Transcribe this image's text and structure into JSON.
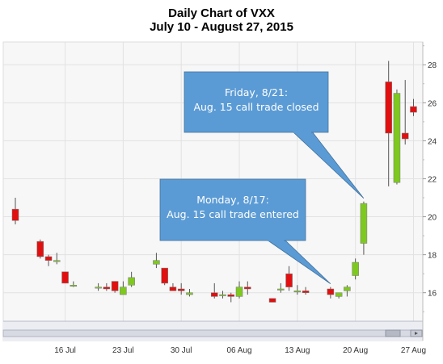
{
  "chart_data": {
    "type": "candlestick",
    "title": "Daily Chart of VXX",
    "subtitle": "July 10 - August 27, 2015",
    "ylim": [
      14.5,
      29.2
    ],
    "yticks": [
      16,
      18,
      20,
      22,
      24,
      26,
      28
    ],
    "xticks": [
      {
        "label": "16 Jul",
        "date": "2015-07-16"
      },
      {
        "label": "23 Jul",
        "date": "2015-07-23"
      },
      {
        "label": "30 Jul",
        "date": "2015-07-30"
      },
      {
        "label": "06 Aug",
        "date": "2015-08-06"
      },
      {
        "label": "13 Aug",
        "date": "2015-08-13"
      },
      {
        "label": "20 Aug",
        "date": "2015-08-20"
      },
      {
        "label": "27 Aug",
        "date": "2015-08-27"
      }
    ],
    "grid": true,
    "up_color": "#7ec820",
    "down_color": "#e01010",
    "candles": [
      {
        "date": "2015-07-10",
        "open": 20.4,
        "high": 21.0,
        "low": 19.6,
        "close": 19.8
      },
      {
        "date": "2015-07-13",
        "open": 18.7,
        "high": 18.8,
        "low": 17.8,
        "close": 17.9
      },
      {
        "date": "2015-07-14",
        "open": 17.9,
        "high": 18.0,
        "low": 17.4,
        "close": 17.7
      },
      {
        "date": "2015-07-15",
        "open": 17.7,
        "high": 18.1,
        "low": 17.5,
        "close": 17.7
      },
      {
        "date": "2015-07-16",
        "open": 17.1,
        "high": 17.1,
        "low": 16.5,
        "close": 16.5
      },
      {
        "date": "2015-07-17",
        "open": 16.4,
        "high": 16.6,
        "low": 16.3,
        "close": 16.4
      },
      {
        "date": "2015-07-20",
        "open": 16.3,
        "high": 16.5,
        "low": 16.1,
        "close": 16.3
      },
      {
        "date": "2015-07-21",
        "open": 16.3,
        "high": 16.5,
        "low": 16.1,
        "close": 16.2
      },
      {
        "date": "2015-07-22",
        "open": 16.6,
        "high": 16.6,
        "low": 16.0,
        "close": 16.1
      },
      {
        "date": "2015-07-23",
        "open": 15.9,
        "high": 16.6,
        "low": 15.9,
        "close": 16.3
      },
      {
        "date": "2015-07-24",
        "open": 16.4,
        "high": 17.1,
        "low": 16.3,
        "close": 16.8
      },
      {
        "date": "2015-07-27",
        "open": 17.5,
        "high": 18.1,
        "low": 17.3,
        "close": 17.7
      },
      {
        "date": "2015-07-28",
        "open": 17.3,
        "high": 17.3,
        "low": 16.4,
        "close": 16.5
      },
      {
        "date": "2015-07-29",
        "open": 16.3,
        "high": 16.5,
        "low": 16.1,
        "close": 16.1
      },
      {
        "date": "2015-07-30",
        "open": 16.2,
        "high": 16.5,
        "low": 15.9,
        "close": 16.1
      },
      {
        "date": "2015-07-31",
        "open": 15.9,
        "high": 16.2,
        "low": 15.8,
        "close": 16.0
      },
      {
        "date": "2015-08-03",
        "open": 16.0,
        "high": 16.5,
        "low": 15.7,
        "close": 15.8
      },
      {
        "date": "2015-08-04",
        "open": 15.9,
        "high": 16.1,
        "low": 15.7,
        "close": 15.9
      },
      {
        "date": "2015-08-05",
        "open": 15.9,
        "high": 16.0,
        "low": 15.5,
        "close": 15.8
      },
      {
        "date": "2015-08-06",
        "open": 15.8,
        "high": 16.6,
        "low": 15.7,
        "close": 16.3
      },
      {
        "date": "2015-08-07",
        "open": 16.3,
        "high": 16.6,
        "low": 15.9,
        "close": 16.2
      },
      {
        "date": "2015-08-10",
        "open": 15.7,
        "high": 15.7,
        "low": 15.5,
        "close": 15.5
      },
      {
        "date": "2015-08-11",
        "open": 16.2,
        "high": 16.5,
        "low": 16.0,
        "close": 16.2
      },
      {
        "date": "2015-08-12",
        "open": 17.0,
        "high": 17.4,
        "low": 16.1,
        "close": 16.3
      },
      {
        "date": "2015-08-13",
        "open": 16.1,
        "high": 16.4,
        "low": 15.9,
        "close": 16.1
      },
      {
        "date": "2015-08-14",
        "open": 16.1,
        "high": 16.3,
        "low": 15.9,
        "close": 16.0
      },
      {
        "date": "2015-08-17",
        "open": 16.2,
        "high": 16.3,
        "low": 15.7,
        "close": 15.9
      },
      {
        "date": "2015-08-18",
        "open": 15.8,
        "high": 16.0,
        "low": 15.7,
        "close": 16.0
      },
      {
        "date": "2015-08-19",
        "open": 16.1,
        "high": 16.4,
        "low": 15.8,
        "close": 16.3
      },
      {
        "date": "2015-08-20",
        "open": 16.9,
        "high": 17.8,
        "low": 16.7,
        "close": 17.6
      },
      {
        "date": "2015-08-21",
        "open": 18.6,
        "high": 20.8,
        "low": 18.0,
        "close": 20.7
      },
      {
        "date": "2015-08-24",
        "open": 27.1,
        "high": 28.2,
        "low": 21.6,
        "close": 24.4
      },
      {
        "date": "2015-08-25",
        "open": 21.8,
        "high": 26.7,
        "low": 21.7,
        "close": 26.5
      },
      {
        "date": "2015-08-26",
        "open": 24.4,
        "high": 27.2,
        "low": 23.8,
        "close": 24.1
      },
      {
        "date": "2015-08-27",
        "open": 25.8,
        "high": 26.2,
        "low": 25.3,
        "close": 25.5
      }
    ],
    "annotations": [
      {
        "lines": [
          "Friday, 8/21:",
          "Aug. 15 call trade closed"
        ],
        "target_date": "2015-08-21"
      },
      {
        "lines": [
          "Monday, 8/17:",
          "Aug. 15 call trade entered"
        ],
        "target_date": "2015-08-17"
      }
    ]
  }
}
